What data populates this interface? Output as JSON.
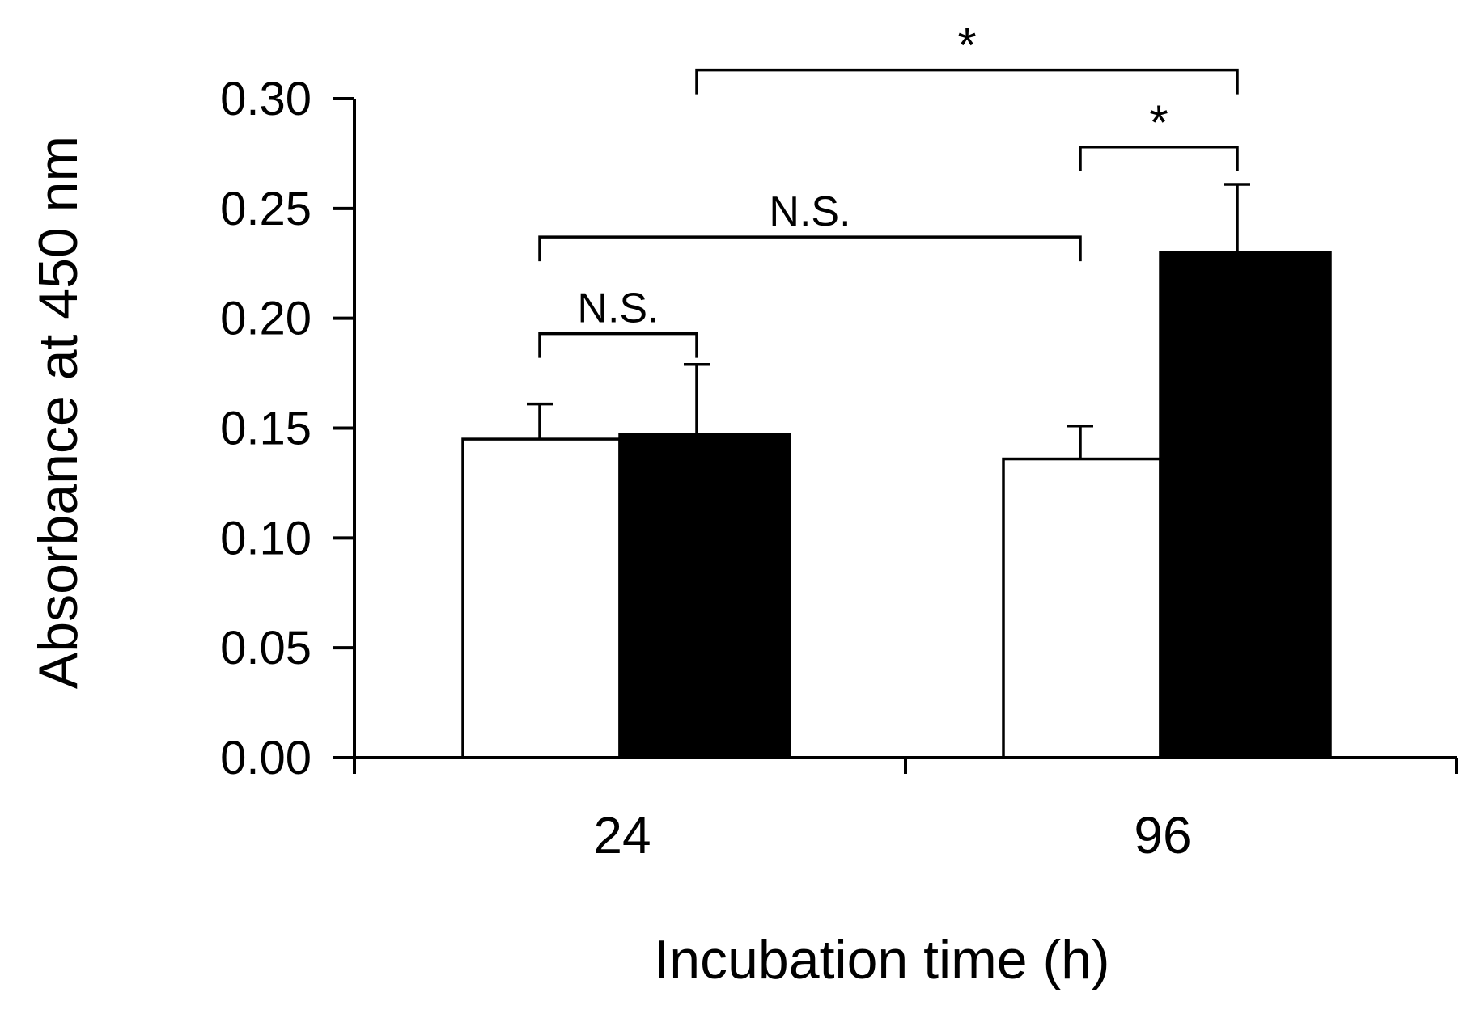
{
  "chart_data": {
    "type": "bar",
    "title": "",
    "xlabel": "Incubation time (h)",
    "ylabel": "Absorbance at 450 nm",
    "ylim": [
      0,
      0.3
    ],
    "yticks": [
      "0.00",
      "0.05",
      "0.10",
      "0.15",
      "0.20",
      "0.25",
      "0.30"
    ],
    "categories": [
      "24",
      "96"
    ],
    "series": [
      {
        "name": "open bars",
        "color": "#ffffff",
        "values": [
          0.145,
          0.136
        ],
        "errors": [
          0.016,
          0.015
        ]
      },
      {
        "name": "filled bars",
        "color": "#000000",
        "values": [
          0.147,
          0.23
        ],
        "errors": [
          0.032,
          0.031
        ]
      }
    ],
    "annotations": [
      {
        "label": "N.S.",
        "from": {
          "category": 0,
          "series": 0
        },
        "to": {
          "category": 0,
          "series": 1
        },
        "y": 0.193
      },
      {
        "label": "N.S.",
        "from": {
          "category": 0,
          "series": 0
        },
        "to": {
          "category": 1,
          "series": 0
        },
        "y": 0.237
      },
      {
        "label": "*",
        "from": {
          "category": 1,
          "series": 0
        },
        "to": {
          "category": 1,
          "series": 1
        },
        "y": 0.278
      },
      {
        "label": "*",
        "from": {
          "category": 0,
          "series": 1
        },
        "to": {
          "category": 1,
          "series": 1
        },
        "y": 0.313
      }
    ]
  }
}
